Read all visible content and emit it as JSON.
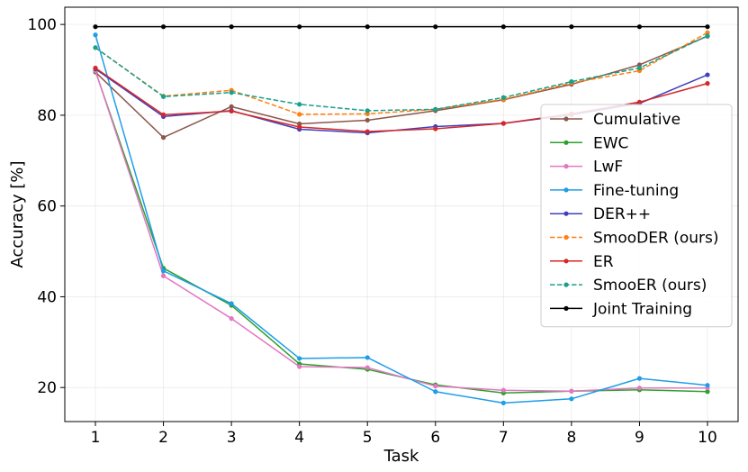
{
  "chart_data": {
    "type": "line",
    "title": "",
    "xlabel": "Task",
    "ylabel": "Accuracy [%]",
    "x": [
      1,
      2,
      3,
      4,
      5,
      6,
      7,
      8,
      9,
      10
    ],
    "xlim": [
      0.55,
      10.45
    ],
    "ylim": [
      12.5,
      103.8
    ],
    "yticks": [
      20,
      40,
      60,
      80,
      100
    ],
    "grid": true,
    "legend_position": "right",
    "series": [
      {
        "name": "Cumulative",
        "color": "#8c564b",
        "dashed": false,
        "values": [
          89.5,
          75.1,
          81.9,
          78.1,
          78.9,
          81.0,
          83.4,
          86.8,
          91.1,
          97.4
        ]
      },
      {
        "name": "EWC",
        "color": "#2ca02c",
        "dashed": false,
        "values": [
          89.7,
          46.3,
          38.1,
          25.2,
          24.0,
          20.6,
          18.8,
          19.2,
          19.5,
          19.1
        ]
      },
      {
        "name": "LwF",
        "color": "#e377c2",
        "dashed": false,
        "values": [
          89.8,
          44.6,
          35.2,
          24.6,
          24.4,
          20.3,
          19.4,
          19.2,
          19.9,
          19.9
        ]
      },
      {
        "name": "Fine-tuning",
        "color": "#1f9de8",
        "dashed": false,
        "values": [
          97.7,
          45.7,
          38.5,
          26.4,
          26.6,
          19.1,
          16.6,
          17.5,
          22.0,
          20.5
        ]
      },
      {
        "name": "DER++",
        "color": "#3f3fbf",
        "dashed": false,
        "values": [
          90.2,
          79.7,
          81.0,
          76.9,
          76.1,
          77.5,
          78.2,
          80.1,
          82.6,
          88.9
        ]
      },
      {
        "name": "SmooDER (ours)",
        "color": "#ff7f0e",
        "dashed": true,
        "values": [
          94.9,
          84.2,
          85.5,
          80.2,
          80.3,
          81.3,
          83.5,
          87.1,
          89.8,
          98.2
        ]
      },
      {
        "name": "ER",
        "color": "#d62728",
        "dashed": false,
        "values": [
          90.4,
          80.1,
          80.9,
          77.4,
          76.4,
          77.0,
          78.2,
          80.3,
          82.9,
          87.0
        ]
      },
      {
        "name": "SmooER (ours)",
        "color": "#17a08c",
        "dashed": true,
        "values": [
          94.9,
          84.1,
          85.0,
          82.4,
          81.0,
          81.3,
          83.9,
          87.4,
          90.4,
          97.5
        ]
      },
      {
        "name": "Joint Training",
        "color": "#000000",
        "dashed": false,
        "values": [
          99.5,
          99.5,
          99.5,
          99.5,
          99.5,
          99.5,
          99.5,
          99.5,
          99.5,
          99.5
        ]
      }
    ]
  }
}
